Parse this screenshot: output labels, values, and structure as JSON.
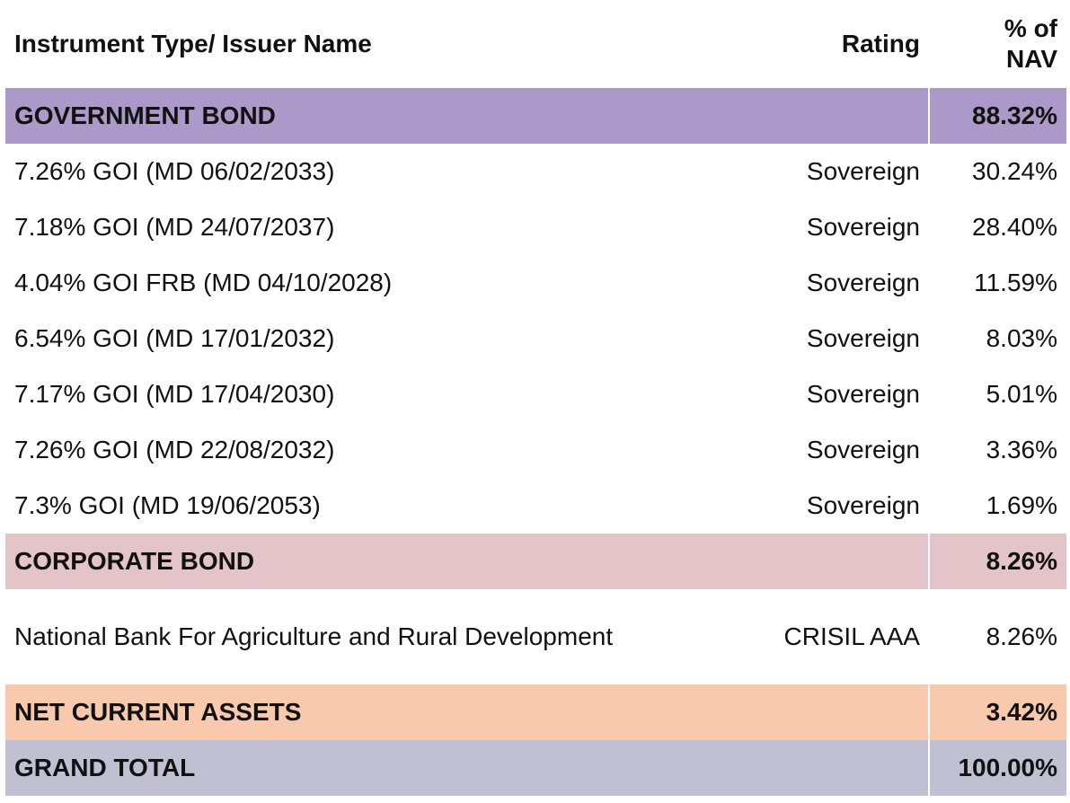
{
  "header": {
    "instrument_label": "Instrument Type/ Issuer Name",
    "rating_label": "Rating",
    "nav_label_line1": "% of",
    "nav_label_line2": "NAV"
  },
  "colors": {
    "government_bond": "#ab99c9",
    "corporate_bond": "#e2c4c9",
    "net_current_assets": "#f8c9ad",
    "grand_total": "#c1c0d2"
  },
  "government_bond": {
    "label": "GOVERNMENT BOND",
    "pct": "88.32%",
    "rows": [
      {
        "name": "7.26% GOI (MD 06/02/2033)",
        "rating": "Sovereign",
        "pct": "30.24%"
      },
      {
        "name": "7.18% GOI (MD 24/07/2037)",
        "rating": "Sovereign",
        "pct": "28.40%"
      },
      {
        "name": "4.04% GOI FRB (MD 04/10/2028)",
        "rating": "Sovereign",
        "pct": "11.59%"
      },
      {
        "name": "6.54% GOI (MD 17/01/2032)",
        "rating": "Sovereign",
        "pct": "8.03%"
      },
      {
        "name": "7.17% GOI (MD 17/04/2030)",
        "rating": "Sovereign",
        "pct": "5.01%"
      },
      {
        "name": "7.26% GOI (MD 22/08/2032)",
        "rating": "Sovereign",
        "pct": "3.36%"
      },
      {
        "name": "7.3% GOI (MD 19/06/2053)",
        "rating": "Sovereign",
        "pct": "1.69%"
      }
    ]
  },
  "corporate_bond": {
    "label": "CORPORATE BOND",
    "pct": "8.26%",
    "rows": [
      {
        "name": "National Bank For Agriculture and Rural Development",
        "rating": "CRISIL AAA",
        "pct": "8.26%"
      }
    ]
  },
  "net_current_assets": {
    "label": "NET CURRENT ASSETS",
    "pct": "3.42%"
  },
  "grand_total": {
    "label": "GRAND TOTAL",
    "pct": "100.00%"
  }
}
